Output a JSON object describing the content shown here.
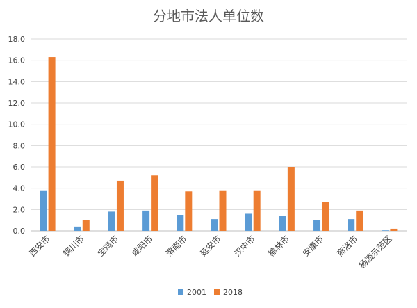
{
  "chart_data": {
    "type": "bar",
    "title": "分地市法人单位数",
    "xlabel": "",
    "ylabel": "",
    "ylim": [
      0,
      18
    ],
    "ytick_labels": [
      "0.0",
      "2.0",
      "4.0",
      "6.0",
      "8.0",
      "10.0",
      "12.0",
      "14.0",
      "16.0",
      "18.0"
    ],
    "grid": true,
    "legend_position": "bottom",
    "categories": [
      "西安市",
      "铜川市",
      "宝鸡市",
      "咸阳市",
      "渭南市",
      "延安市",
      "汉中市",
      "榆林市",
      "安康市",
      "商洛市",
      "杨凌示范区"
    ],
    "series": [
      {
        "name": "2001",
        "color": "#5b9bd5",
        "values": [
          3.8,
          0.4,
          1.8,
          1.9,
          1.5,
          1.1,
          1.6,
          1.4,
          1.0,
          1.1,
          0.05
        ]
      },
      {
        "name": "2018",
        "color": "#ed7d31",
        "values": [
          16.3,
          1.0,
          4.7,
          5.2,
          3.7,
          3.8,
          3.8,
          6.0,
          2.7,
          1.9,
          0.2
        ]
      }
    ]
  }
}
